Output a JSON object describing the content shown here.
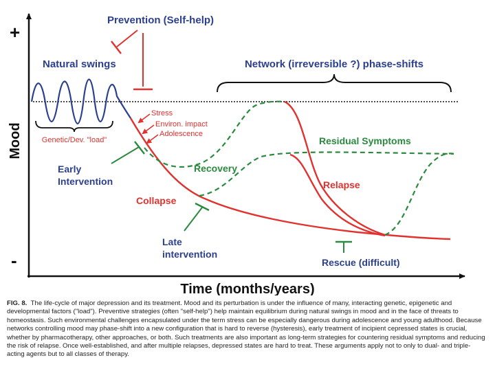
{
  "diagram": {
    "axis": {
      "y_label": "Mood",
      "x_label": "Time (months/years)",
      "y_plus": "+",
      "y_minus": "-"
    },
    "labels": {
      "prevention": "Prevention (Self-help)",
      "natural_swings": "Natural swings",
      "network_shifts": "Network (irreversible ?) phase-shifts",
      "stress": "Stress",
      "environ_impact": "Environ. impact",
      "adolescence": "Adolescence",
      "genetic_load": "Genetic/Dev. \"load\"",
      "residual_symptoms": "Residual Symptoms",
      "early_intervention_1": "Early",
      "early_intervention_2": "Intervention",
      "recovery": "Recovery",
      "relapse": "Relapse",
      "collapse": "Collapse",
      "late_intervention_1": "Late",
      "late_intervention_2": "intervention",
      "rescue": "Rescue (difficult)"
    },
    "colors": {
      "baseline": "#2b3f8f",
      "stress_curves": "#e0322e",
      "treatment": "#2a8a3e",
      "axis": "#111111"
    }
  },
  "caption": {
    "figure_label": "FIG. 8.",
    "text": "The life-cycle of major depression and its treatment. Mood and its perturbation is under the influence of many, interacting genetic, epigenetic and developmental factors (\"load\"). Preventive strategies (often \"self-help\") help maintain equilibrium during natural swings in mood and in the face of threats to homeostasis. Such environmental challenges encapsulated under the term stress can be especially dangerous during adolescence and young adulthood. Because networks controlling mood may phase-shift into a new configuration that is hard to reverse (hysteresis), early treatment of incipient cepressed states is crucial, whether by pharmacotherapy, other approaches, or both. Such treatments are also important as long-term strategies for countering residual symptoms and reducing the risk of relapse. Once well-established, and after multiple relapses, depressed states are hard to treat. These arguments apply not to only to dual- and triple-acting agents but to all classes of therapy."
  }
}
